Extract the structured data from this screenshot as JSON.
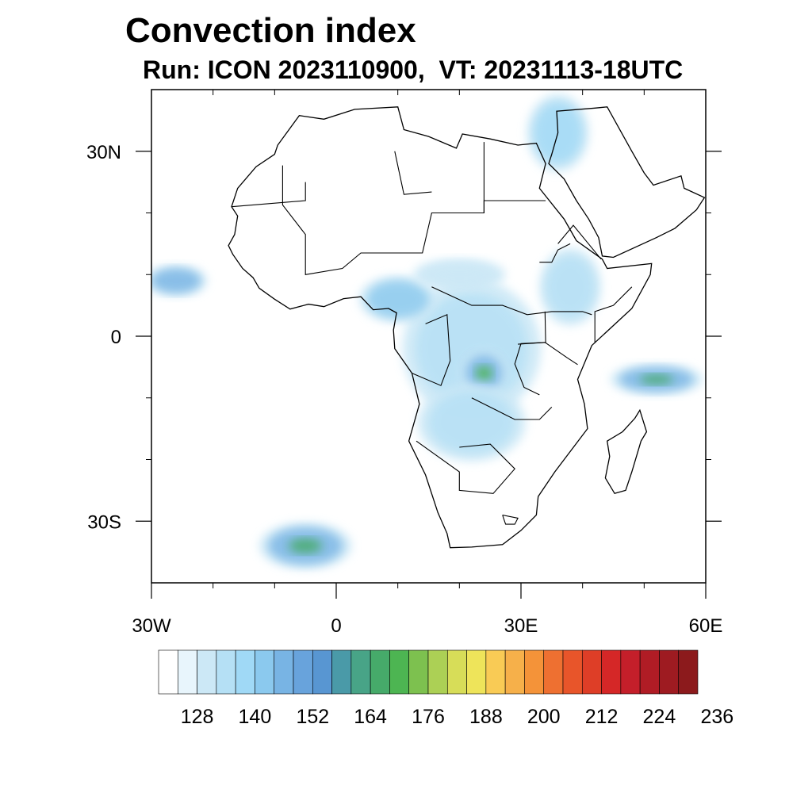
{
  "title": "Convection index",
  "subtitle": "Run: ICON 2023110900,  VT: 20231113-18UTC",
  "map": {
    "lon_range": [
      -30,
      60
    ],
    "lat_range": [
      -40,
      40
    ],
    "lon_ticks": [
      {
        "value": -30,
        "label": "30W"
      },
      {
        "value": 0,
        "label": "0"
      },
      {
        "value": 30,
        "label": "30E"
      },
      {
        "value": 60,
        "label": "60E"
      }
    ],
    "lat_ticks": [
      {
        "value": 30,
        "label": "30N"
      },
      {
        "value": 0,
        "label": "0"
      },
      {
        "value": -30,
        "label": "30S"
      }
    ],
    "regions": [
      {
        "name": "central-africa-convection",
        "lon": 22,
        "lat": -2,
        "rlon": 9,
        "rlat": 9,
        "level": 3
      },
      {
        "name": "congo-core",
        "lon": 24,
        "lat": -6,
        "rlon": 3,
        "rlat": 3,
        "level": 9
      },
      {
        "name": "west-africa-coast-convection",
        "lon": 10,
        "lat": 6,
        "rlon": 5,
        "rlat": 3,
        "level": 5
      },
      {
        "name": "sahel-band",
        "lon": 20,
        "lat": 10,
        "rlon": 6,
        "rlat": 2,
        "level": 2
      },
      {
        "name": "ethiopia-convection",
        "lon": 38,
        "lat": 8,
        "rlon": 4,
        "rlat": 5,
        "level": 3
      },
      {
        "name": "madagascar-channel",
        "lon": 52,
        "lat": -7,
        "rlon": 6,
        "rlat": 2,
        "level": 8
      },
      {
        "name": "atlantic-south-frontal-band",
        "lon": -5,
        "lat": -34,
        "rlon": 6,
        "rlat": 3,
        "level": 8
      },
      {
        "name": "atlantic-west",
        "lon": -26,
        "lat": 9,
        "rlon": 4,
        "rlat": 2,
        "level": 6
      },
      {
        "name": "red-sea-mediterranean",
        "lon": 36,
        "lat": 33,
        "rlon": 4,
        "rlat": 5,
        "level": 4
      },
      {
        "name": "angola-zambia",
        "lon": 22,
        "lat": -14,
        "rlon": 7,
        "rlat": 5,
        "level": 3
      }
    ]
  },
  "colorbar": {
    "colors": [
      "#ffffff",
      "#e8f5fc",
      "#cce8f6",
      "#b5e0f5",
      "#a0d9f6",
      "#8bc9ee",
      "#78b4e4",
      "#68a3dc",
      "#5896d2",
      "#4a9aa8",
      "#48a487",
      "#46aa6a",
      "#4db552",
      "#7dc14f",
      "#acd055",
      "#d7dd58",
      "#eee45a",
      "#f9cb55",
      "#f6b04a",
      "#f49339",
      "#ee7031",
      "#e8552a",
      "#de3e27",
      "#d52727",
      "#c41f2a",
      "#b01c25",
      "#9e1b21",
      "#8c1a1c"
    ],
    "tick_labels": [
      "128",
      "140",
      "152",
      "164",
      "176",
      "188",
      "200",
      "212",
      "224",
      "236"
    ],
    "tick_indices": [
      2,
      5,
      8,
      11,
      14,
      17,
      20,
      23,
      26,
      29
    ]
  },
  "legend_note": ""
}
